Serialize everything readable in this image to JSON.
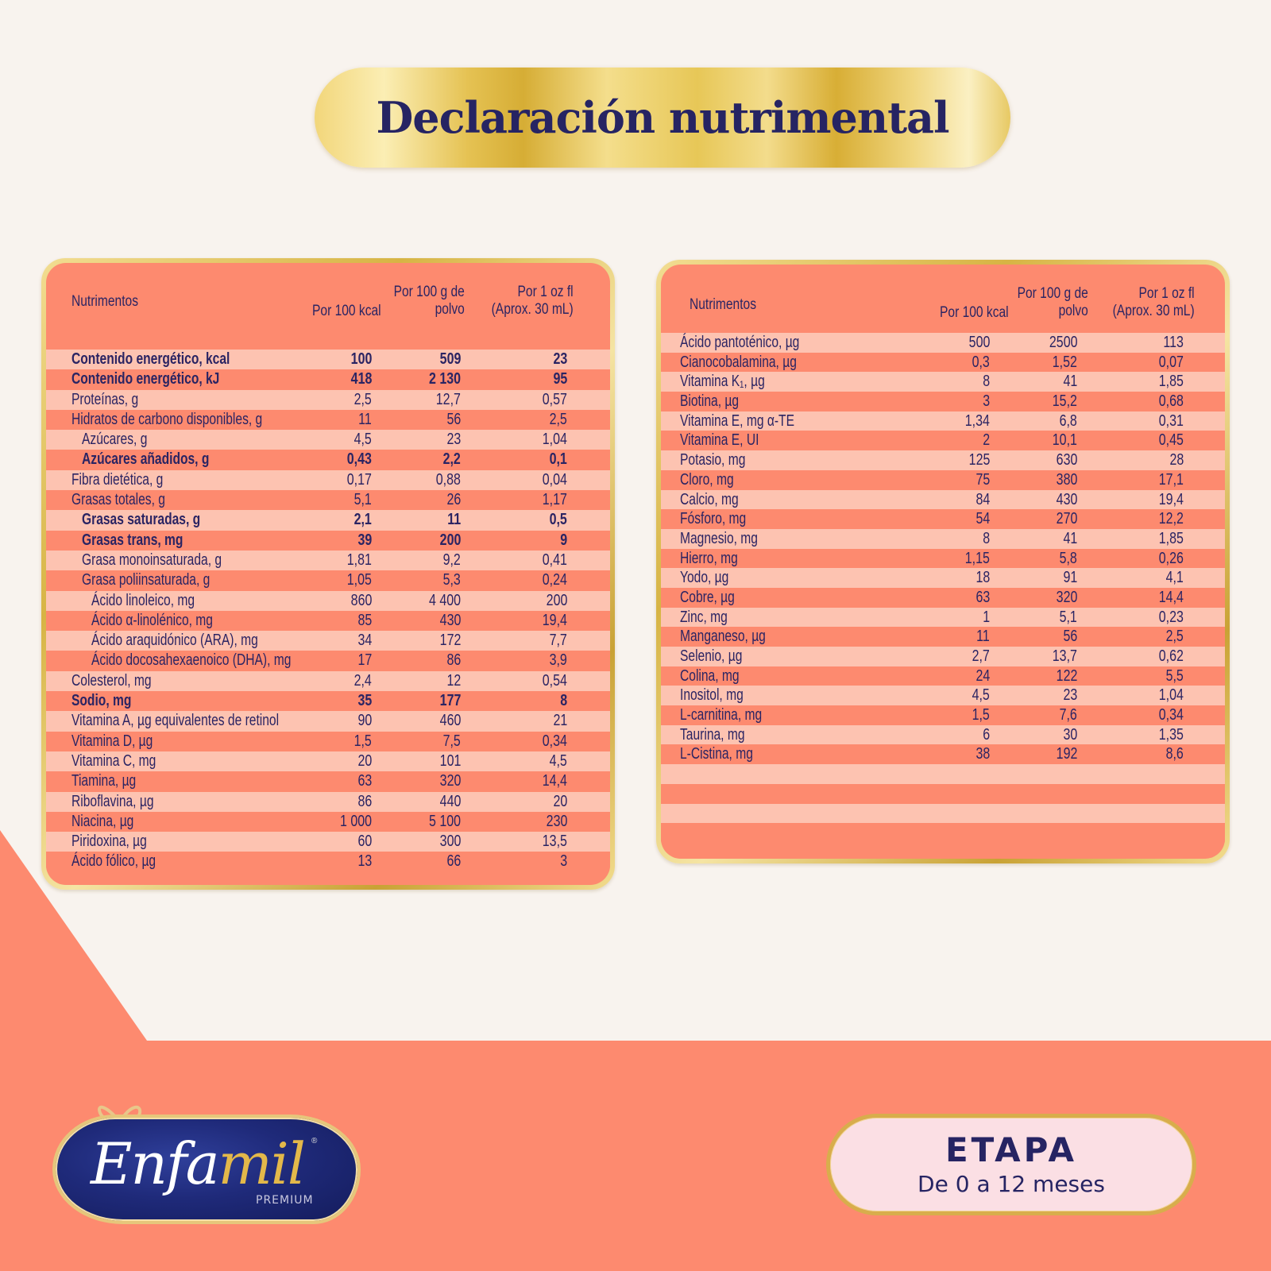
{
  "title": "Declaración nutrimental",
  "colors": {
    "background": "#f8f3ee",
    "coral": "#fd8a6f",
    "row_light": "#fdc3b1",
    "row_dark": "#fd8a6f",
    "navy_text": "#262463",
    "gold": "#d8ad4c"
  },
  "table_left": {
    "headers": {
      "nutrient": "Nutrimentos",
      "col1": "Por 100 kcal",
      "col2_line1": "Por 100 g de",
      "col2_line2": "polvo",
      "col3_line1": "Por 1 oz fl",
      "col3_line2": "(Aprox. 30 mL)"
    },
    "rows": [
      {
        "name": "Contenido energético, kcal",
        "c1": "100",
        "c2": "509",
        "c3": "23",
        "bold": true,
        "indent": 0
      },
      {
        "name": "Contenido energético, kJ",
        "c1": "418",
        "c2": "2 130",
        "c3": "95",
        "bold": true,
        "indent": 0
      },
      {
        "name": "Proteínas, g",
        "c1": "2,5",
        "c2": "12,7",
        "c3": "0,57",
        "bold": false,
        "indent": 0
      },
      {
        "name": "Hidratos de carbono disponibles, g",
        "c1": "11",
        "c2": "56",
        "c3": "2,5",
        "bold": false,
        "indent": 0
      },
      {
        "name": "Azúcares, g",
        "c1": "4,5",
        "c2": "23",
        "c3": "1,04",
        "bold": false,
        "indent": 1
      },
      {
        "name": "Azúcares añadidos, g",
        "c1": "0,43",
        "c2": "2,2",
        "c3": "0,1",
        "bold": true,
        "indent": 1
      },
      {
        "name": "Fibra dietética, g",
        "c1": "0,17",
        "c2": "0,88",
        "c3": "0,04",
        "bold": false,
        "indent": 0
      },
      {
        "name": "Grasas totales, g",
        "c1": "5,1",
        "c2": "26",
        "c3": "1,17",
        "bold": false,
        "indent": 0
      },
      {
        "name": "Grasas saturadas, g",
        "c1": "2,1",
        "c2": "11",
        "c3": "0,5",
        "bold": true,
        "indent": 1
      },
      {
        "name": "Grasas trans, mg",
        "c1": "39",
        "c2": "200",
        "c3": "9",
        "bold": true,
        "indent": 1
      },
      {
        "name": "Grasa monoinsaturada, g",
        "c1": "1,81",
        "c2": "9,2",
        "c3": "0,41",
        "bold": false,
        "indent": 1
      },
      {
        "name": "Grasa poliinsaturada, g",
        "c1": "1,05",
        "c2": "5,3",
        "c3": "0,24",
        "bold": false,
        "indent": 1
      },
      {
        "name": "Ácido linoleico, mg",
        "c1": "860",
        "c2": "4 400",
        "c3": "200",
        "bold": false,
        "indent": 2
      },
      {
        "name": "Ácido α-linolénico, mg",
        "c1": "85",
        "c2": "430",
        "c3": "19,4",
        "bold": false,
        "indent": 2
      },
      {
        "name": "Ácido araquidónico (ARA), mg",
        "c1": "34",
        "c2": "172",
        "c3": "7,7",
        "bold": false,
        "indent": 2
      },
      {
        "name": "Ácido docosahexaenoico (DHA), mg",
        "c1": "17",
        "c2": "86",
        "c3": "3,9",
        "bold": false,
        "indent": 2
      },
      {
        "name": "Colesterol, mg",
        "c1": "2,4",
        "c2": "12",
        "c3": "0,54",
        "bold": false,
        "indent": 0
      },
      {
        "name": "Sodio, mg",
        "c1": "35",
        "c2": "177",
        "c3": "8",
        "bold": true,
        "indent": 0
      },
      {
        "name": "Vitamina A, µg equivalentes de retinol",
        "c1": "90",
        "c2": "460",
        "c3": "21",
        "bold": false,
        "indent": 0
      },
      {
        "name": "Vitamina D, µg",
        "c1": "1,5",
        "c2": "7,5",
        "c3": "0,34",
        "bold": false,
        "indent": 0
      },
      {
        "name": "Vitamina C, mg",
        "c1": "20",
        "c2": "101",
        "c3": "4,5",
        "bold": false,
        "indent": 0
      },
      {
        "name": "Tiamina, µg",
        "c1": "63",
        "c2": "320",
        "c3": "14,4",
        "bold": false,
        "indent": 0
      },
      {
        "name": "Riboflavina, µg",
        "c1": "86",
        "c2": "440",
        "c3": "20",
        "bold": false,
        "indent": 0
      },
      {
        "name": "Niacina, µg",
        "c1": "1 000",
        "c2": "5 100",
        "c3": "230",
        "bold": false,
        "indent": 0
      },
      {
        "name": "Piridoxina, µg",
        "c1": "60",
        "c2": "300",
        "c3": "13,5",
        "bold": false,
        "indent": 0
      },
      {
        "name": "Ácido fólico, µg",
        "c1": "13",
        "c2": "66",
        "c3": "3",
        "bold": false,
        "indent": 0
      }
    ]
  },
  "table_right": {
    "headers": {
      "nutrient": "Nutrimentos",
      "col1": "Por 100 kcal",
      "col2_line1": "Por 100 g de",
      "col2_line2": "polvo",
      "col3_line1": "Por 1 oz fl",
      "col3_line2": "(Aprox. 30 mL)"
    },
    "rows": [
      {
        "name": "Ácido pantoténico, µg",
        "c1": "500",
        "c2": "2500",
        "c3": "113"
      },
      {
        "name": "Cianocobalamina, µg",
        "c1": "0,3",
        "c2": "1,52",
        "c3": "0,07"
      },
      {
        "name": "Vitamina K₁, µg",
        "c1": "8",
        "c2": "41",
        "c3": "1,85"
      },
      {
        "name": "Biotina, µg",
        "c1": "3",
        "c2": "15,2",
        "c3": "0,68"
      },
      {
        "name": "Vitamina E, mg α-TE",
        "c1": "1,34",
        "c2": "6,8",
        "c3": "0,31"
      },
      {
        "name": "Vitamina E, UI",
        "c1": "2",
        "c2": "10,1",
        "c3": "0,45"
      },
      {
        "name": "Potasio, mg",
        "c1": "125",
        "c2": "630",
        "c3": "28"
      },
      {
        "name": "Cloro, mg",
        "c1": "75",
        "c2": "380",
        "c3": "17,1"
      },
      {
        "name": "Calcio, mg",
        "c1": "84",
        "c2": "430",
        "c3": "19,4"
      },
      {
        "name": "Fósforo, mg",
        "c1": "54",
        "c2": "270",
        "c3": "12,2"
      },
      {
        "name": "Magnesio, mg",
        "c1": "8",
        "c2": "41",
        "c3": "1,85"
      },
      {
        "name": "Hierro, mg",
        "c1": "1,15",
        "c2": "5,8",
        "c3": "0,26"
      },
      {
        "name": "Yodo, µg",
        "c1": "18",
        "c2": "91",
        "c3": "4,1"
      },
      {
        "name": "Cobre, µg",
        "c1": "63",
        "c2": "320",
        "c3": "14,4"
      },
      {
        "name": "Zinc, mg",
        "c1": "1",
        "c2": "5,1",
        "c3": "0,23"
      },
      {
        "name": "Manganeso, µg",
        "c1": "11",
        "c2": "56",
        "c3": "2,5"
      },
      {
        "name": "Selenio, µg",
        "c1": "2,7",
        "c2": "13,7",
        "c3": "0,62"
      },
      {
        "name": "Colina, mg",
        "c1": "24",
        "c2": "122",
        "c3": "5,5"
      },
      {
        "name": "Inositol, mg",
        "c1": "4,5",
        "c2": "23",
        "c3": "1,04"
      },
      {
        "name": "L-carnitina, mg",
        "c1": "1,5",
        "c2": "7,6",
        "c3": "0,34"
      },
      {
        "name": "Taurina, mg",
        "c1": "6",
        "c2": "30",
        "c3": "1,35"
      },
      {
        "name": "L-Cistina, mg",
        "c1": "38",
        "c2": "192",
        "c3": "8,6"
      },
      {
        "name": "",
        "c1": "",
        "c2": "",
        "c3": ""
      },
      {
        "name": "",
        "c1": "",
        "c2": "",
        "c3": ""
      },
      {
        "name": "",
        "c1": "",
        "c2": "",
        "c3": ""
      },
      {
        "name": "",
        "c1": "",
        "c2": "",
        "c3": ""
      }
    ]
  },
  "logo": {
    "brand_part1": "Enfa",
    "brand_part2": "mil",
    "registered": "®",
    "subtitle": "PREMIUM"
  },
  "stage": {
    "title": "ETAPA",
    "subtitle": "De 0 a 12 meses"
  }
}
